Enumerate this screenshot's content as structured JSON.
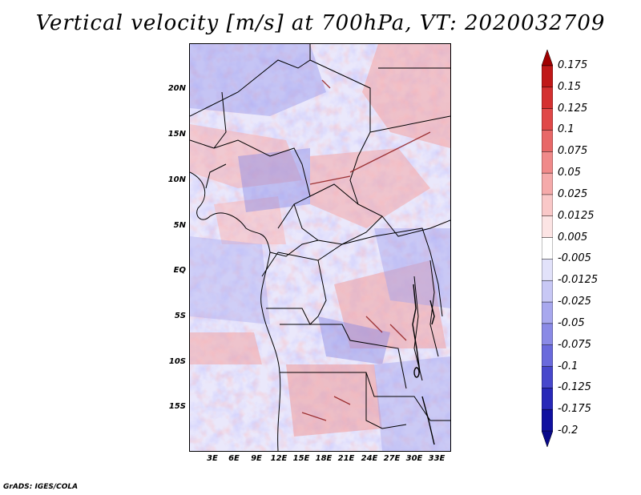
{
  "title": "Vertical velocity [m/s] at 700hPa, VT: 2020032709",
  "footer": "GrADS: IGES/COLA",
  "lat_labels": [
    "20N",
    "15N",
    "10N",
    "5N",
    "EQ",
    "5S",
    "10S",
    "15S"
  ],
  "lon_labels": [
    "3E",
    "6E",
    "9E",
    "12E",
    "15E",
    "18E",
    "21E",
    "24E",
    "27E",
    "30E",
    "33E"
  ],
  "colorbar": {
    "labels": [
      "0.175",
      "0.15",
      "0.125",
      "0.1",
      "0.075",
      "0.05",
      "0.025",
      "0.0125",
      "0.005",
      "-0.005",
      "-0.0125",
      "-0.025",
      "-0.05",
      "-0.075",
      "-0.1",
      "-0.125",
      "-0.175",
      "-0.2"
    ],
    "colors": [
      "#a00000",
      "#c01818",
      "#d43030",
      "#e04848",
      "#e86868",
      "#f08a8a",
      "#f5aaaa",
      "#f9c8c8",
      "#fce4e4",
      "#ffffff",
      "#e2e2fa",
      "#c8c8f5",
      "#a8a8ee",
      "#8a8ae6",
      "#6a6adc",
      "#4848cc",
      "#2828b8",
      "#1010a0",
      "#08088a"
    ]
  }
}
